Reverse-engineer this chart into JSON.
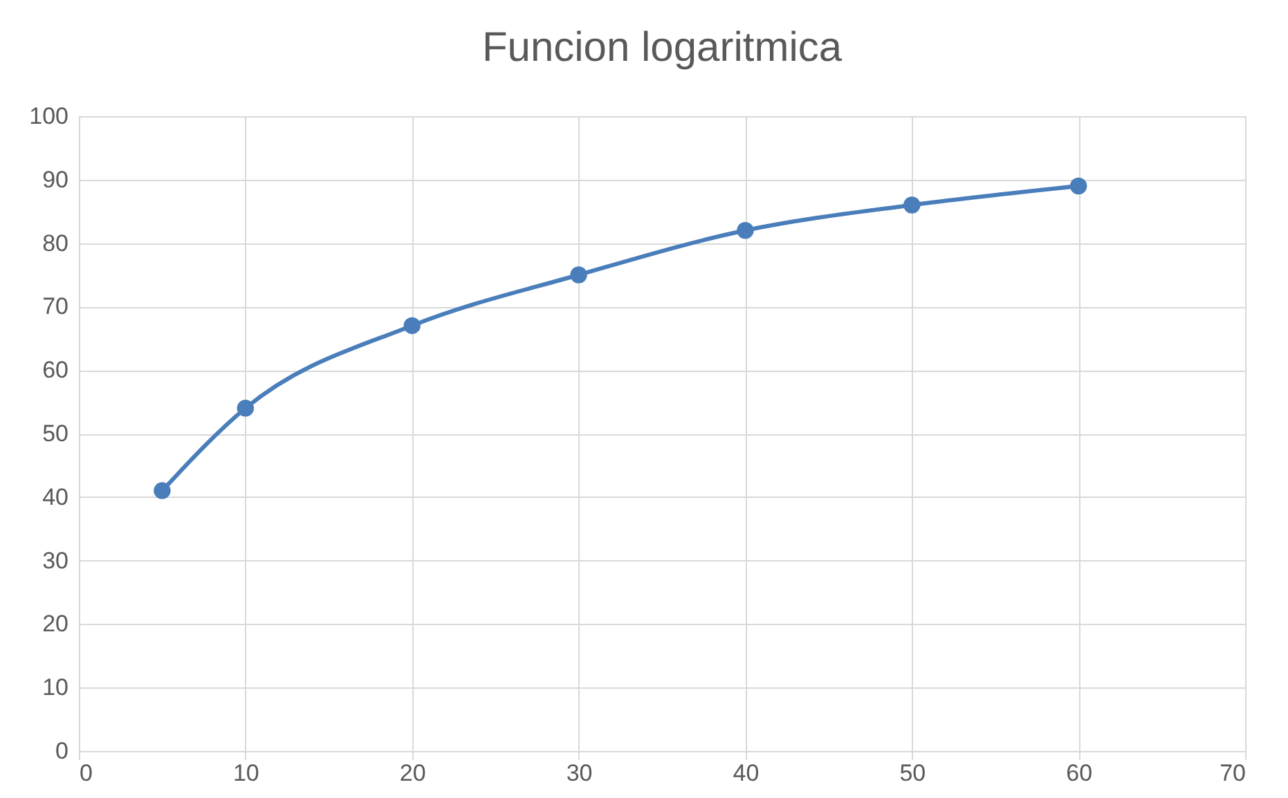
{
  "chart_data": {
    "type": "line",
    "title": "Funcion logaritmica",
    "x": [
      5,
      10,
      20,
      30,
      40,
      50,
      60
    ],
    "series": [
      {
        "color": "#4a7ebb",
        "values": [
          41,
          54,
          67,
          75,
          82,
          86,
          89
        ]
      }
    ],
    "xlim": [
      0,
      70
    ],
    "xticks": [
      0,
      10,
      20,
      30,
      40,
      50,
      60,
      70
    ],
    "ylim": [
      0,
      100
    ],
    "yticks": [
      0,
      10,
      20,
      30,
      40,
      50,
      60,
      70,
      80,
      90,
      100
    ],
    "grid": true,
    "marker": "circle",
    "line_style": "solid"
  }
}
